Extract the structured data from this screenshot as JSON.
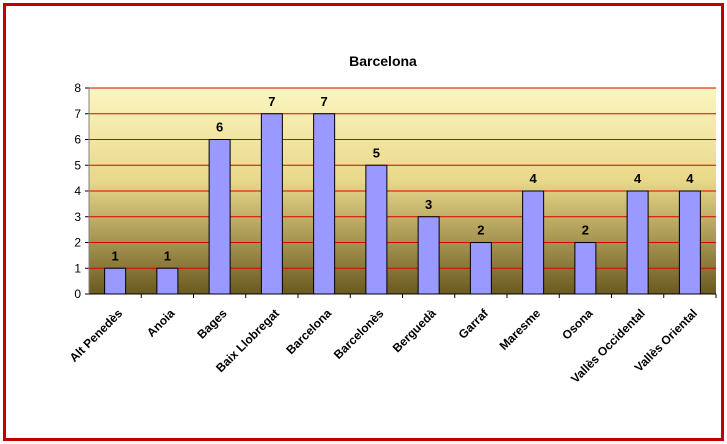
{
  "chart_data": {
    "type": "bar",
    "title": "Barcelona",
    "xlabel": "",
    "ylabel": "",
    "categories": [
      "Alt Penedès",
      "Anoia",
      "Bages",
      "Baix Llobregat",
      "Barcelona",
      "Barcelonès",
      "Berguedà",
      "Garraf",
      "Maresme",
      "Osona",
      "Vallès Occidental",
      "Vallès Oriental"
    ],
    "values": [
      1,
      1,
      6,
      7,
      7,
      5,
      3,
      2,
      4,
      2,
      4,
      4
    ],
    "ylim": [
      0,
      8
    ],
    "yticks": [
      "0",
      "1",
      "2",
      "3",
      "4",
      "5",
      "6",
      "7",
      "8"
    ],
    "grid": true,
    "legend": "none",
    "colors": {
      "frame": "#c00000",
      "bar_fill": "#9999ff",
      "bar_stroke": "#000000",
      "grid": "#e00000",
      "plot_top": "#fbf5c0",
      "plot_bottom": "#6b5a20"
    }
  }
}
